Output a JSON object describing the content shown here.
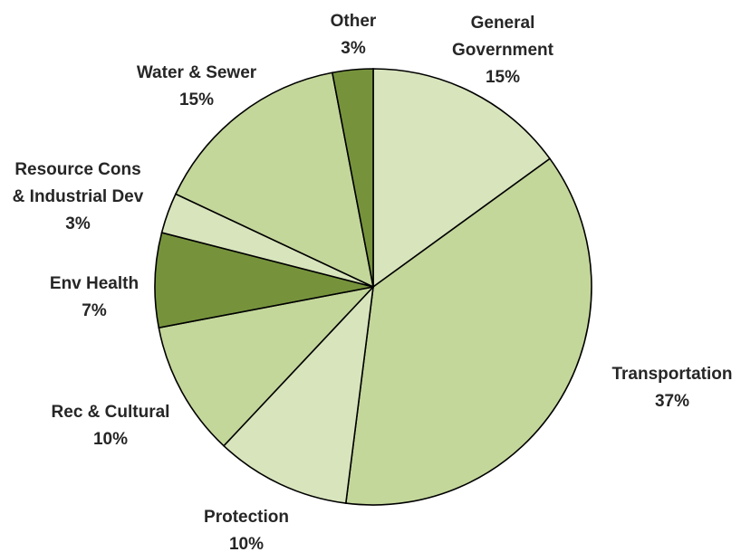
{
  "chart_data": {
    "type": "pie",
    "title": "",
    "start_angle_deg": 0,
    "direction": "clockwise",
    "slices": [
      {
        "label_lines": [
          "General",
          "Government"
        ],
        "percent_label": "15%",
        "value": 15,
        "color": "#D8E4BC"
      },
      {
        "label_lines": [
          "Transportation"
        ],
        "percent_label": "37%",
        "value": 37,
        "color": "#C4D79B"
      },
      {
        "label_lines": [
          "Protection"
        ],
        "percent_label": "10%",
        "value": 10,
        "color": "#D8E4BC"
      },
      {
        "label_lines": [
          "Rec & Cultural"
        ],
        "percent_label": "10%",
        "value": 10,
        "color": "#C4D79B"
      },
      {
        "label_lines": [
          "Env Health"
        ],
        "percent_label": "7%",
        "value": 7,
        "color": "#76933C"
      },
      {
        "label_lines": [
          "Resource Cons",
          "& Industrial Dev"
        ],
        "percent_label": "3%",
        "value": 3,
        "color": "#D8E4BC"
      },
      {
        "label_lines": [
          "Water & Sewer"
        ],
        "percent_label": "15%",
        "value": 15,
        "color": "#C4D79B"
      },
      {
        "label_lines": [
          "Other"
        ],
        "percent_label": "3%",
        "value": 3,
        "color": "#76933C"
      }
    ]
  }
}
